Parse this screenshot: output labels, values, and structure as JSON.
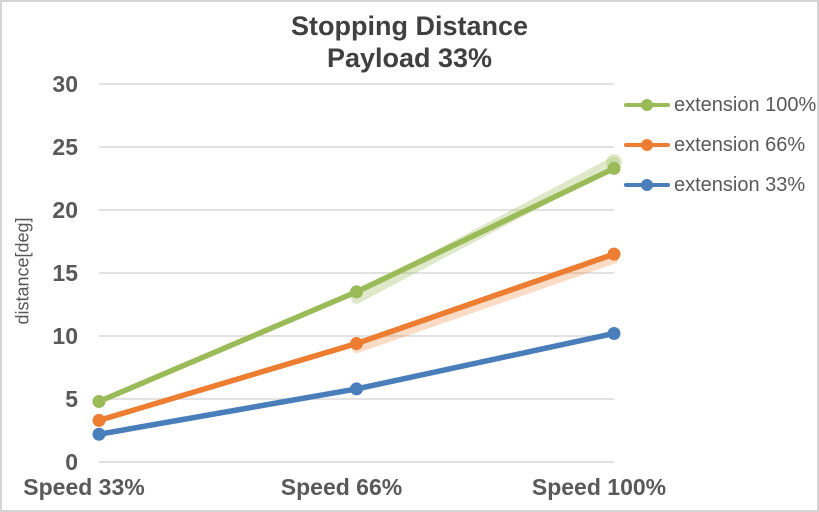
{
  "title": {
    "line1": "Stopping Distance",
    "line2": "Payload 33%"
  },
  "chart_data": {
    "type": "line",
    "title": "Stopping Distance",
    "subtitle": "Payload 33%",
    "categories": [
      "Speed 33%",
      "Speed 66%",
      "Speed 100%"
    ],
    "series": [
      {
        "name": "extension 100%",
        "color": "#9BBB59",
        "values": [
          4.8,
          13.5,
          23.3
        ]
      },
      {
        "name": "extension 66%",
        "color": "#ED7D31",
        "values": [
          3.3,
          9.4,
          16.5
        ]
      },
      {
        "name": "extension 33%",
        "color": "#4A7EBB",
        "values": [
          2.2,
          5.8,
          10.2
        ]
      }
    ],
    "ghost_series": [
      {
        "name": "extension 100% glow",
        "color": "#9BBB59",
        "opacity": 0.32,
        "width": 11,
        "x": [
          1,
          2
        ],
        "values": [
          13.0,
          23.8
        ],
        "end_marker": true
      },
      {
        "name": "extension 66% glow",
        "color": "#ED7D31",
        "opacity": 0.28,
        "width": 9,
        "x": [
          1,
          2
        ],
        "values": [
          9.0,
          16.1
        ],
        "end_marker": false
      }
    ],
    "xlabel": "",
    "ylabel": "distance[deg]",
    "ylim": [
      0,
      30
    ],
    "yticks": [
      0,
      5,
      10,
      15,
      20,
      25,
      30
    ],
    "grid": true,
    "legend_position": "right",
    "legend": [
      "extension 100%",
      "extension 66%",
      "extension 33%"
    ]
  },
  "styles": {
    "grid_color": "#D9D9D9",
    "axis_color": "#D6D6D6",
    "tick_text_color": "#595959",
    "title_color": "#404040",
    "background": "#FFFFFF",
    "border_color": "#D5D5D5"
  }
}
